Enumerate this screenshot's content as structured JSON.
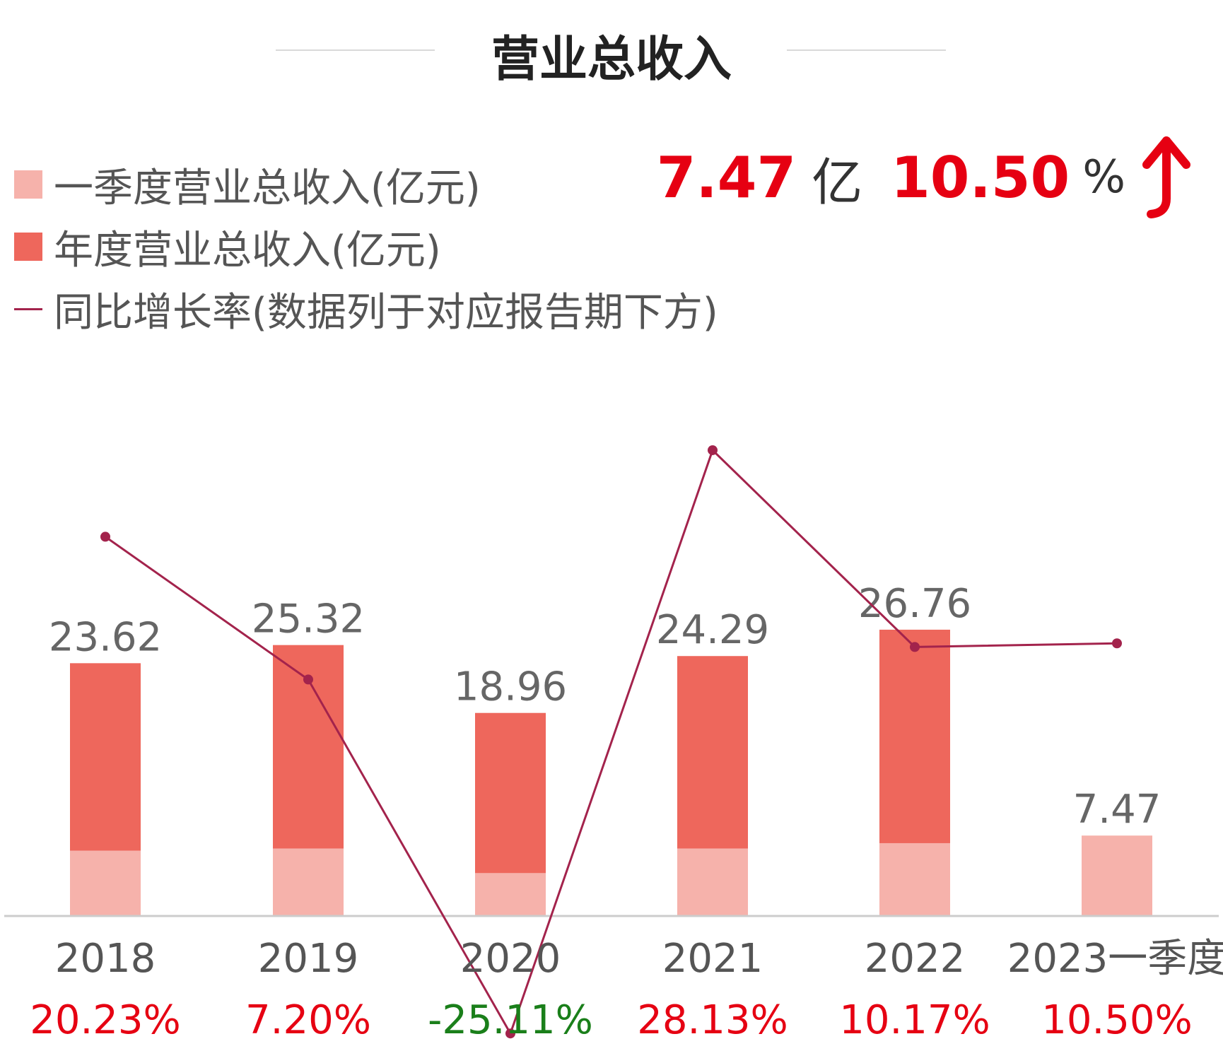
{
  "title": "营业总收入",
  "legend": {
    "quarter": "一季度营业总收入(亿元)",
    "annual": "年度营业总收入(亿元)",
    "growth": "同比增长率(数据列于对应报告期下方)"
  },
  "summary": {
    "value": "7.47",
    "unit": "亿",
    "rate": "10.50",
    "rate_unit": "%",
    "arrow_icon": "up-arrow-icon"
  },
  "colors": {
    "annual": "#ee675c",
    "quarter": "#f6b2ab",
    "line": "#a3234c",
    "positive": "#e60012",
    "negative": "#1a7f1a",
    "axis": "#cccccc"
  },
  "chart_data": {
    "type": "bar",
    "categories": [
      "2018",
      "2019",
      "2020",
      "2021",
      "2022",
      "2023一季度"
    ],
    "series": [
      {
        "name": "年度营业总收入(亿元)",
        "values": [
          23.62,
          25.32,
          18.96,
          24.29,
          26.76,
          null
        ]
      },
      {
        "name": "一季度营业总收入(亿元)",
        "values": [
          6.06,
          6.26,
          3.96,
          6.26,
          6.76,
          7.47
        ]
      },
      {
        "name": "同比增长率(数据列于对应报告期下方)",
        "type": "line",
        "values": [
          20.23,
          7.2,
          -25.11,
          28.13,
          10.17,
          10.5
        ],
        "labels": [
          "20.23%",
          "7.20%",
          "-25.11%",
          "28.13%",
          "10.17%",
          "10.50%"
        ]
      }
    ],
    "bar_labels": [
      "23.62",
      "25.32",
      "18.96",
      "24.29",
      "26.76",
      "7.47"
    ],
    "ylim": [
      0,
      30
    ],
    "grid": false,
    "legend_position": "top-left"
  }
}
